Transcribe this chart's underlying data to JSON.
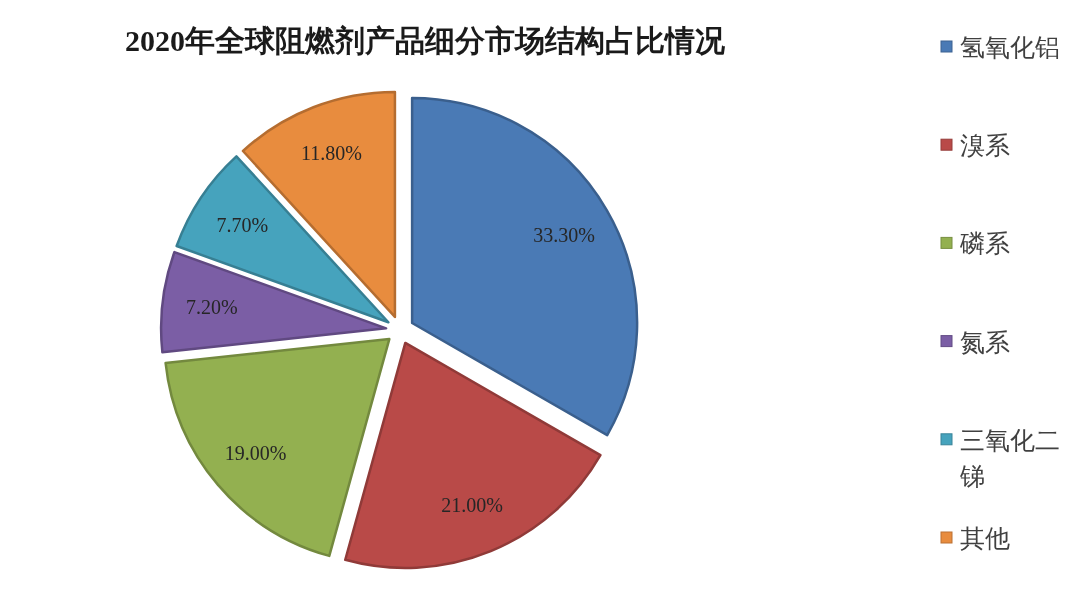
{
  "chart_data": {
    "type": "pie",
    "title": "2020年全球阻燃剂产品细分市场结构占比情况",
    "categories": [
      "氢氧化铝",
      "溴系",
      "磷系",
      "氮系",
      "三氧化二锑",
      "其他"
    ],
    "values": [
      33.3,
      21.0,
      19.0,
      7.2,
      7.7,
      11.8
    ],
    "colors": [
      "#4a7ab5",
      "#b94a48",
      "#93b050",
      "#7b5ea5",
      "#46a3bd",
      "#e88c3e"
    ],
    "value_labels": [
      "33.30%",
      "21.00%",
      "19.00%",
      "7.20%",
      "7.70%",
      "11.80%"
    ],
    "legend": "right"
  }
}
